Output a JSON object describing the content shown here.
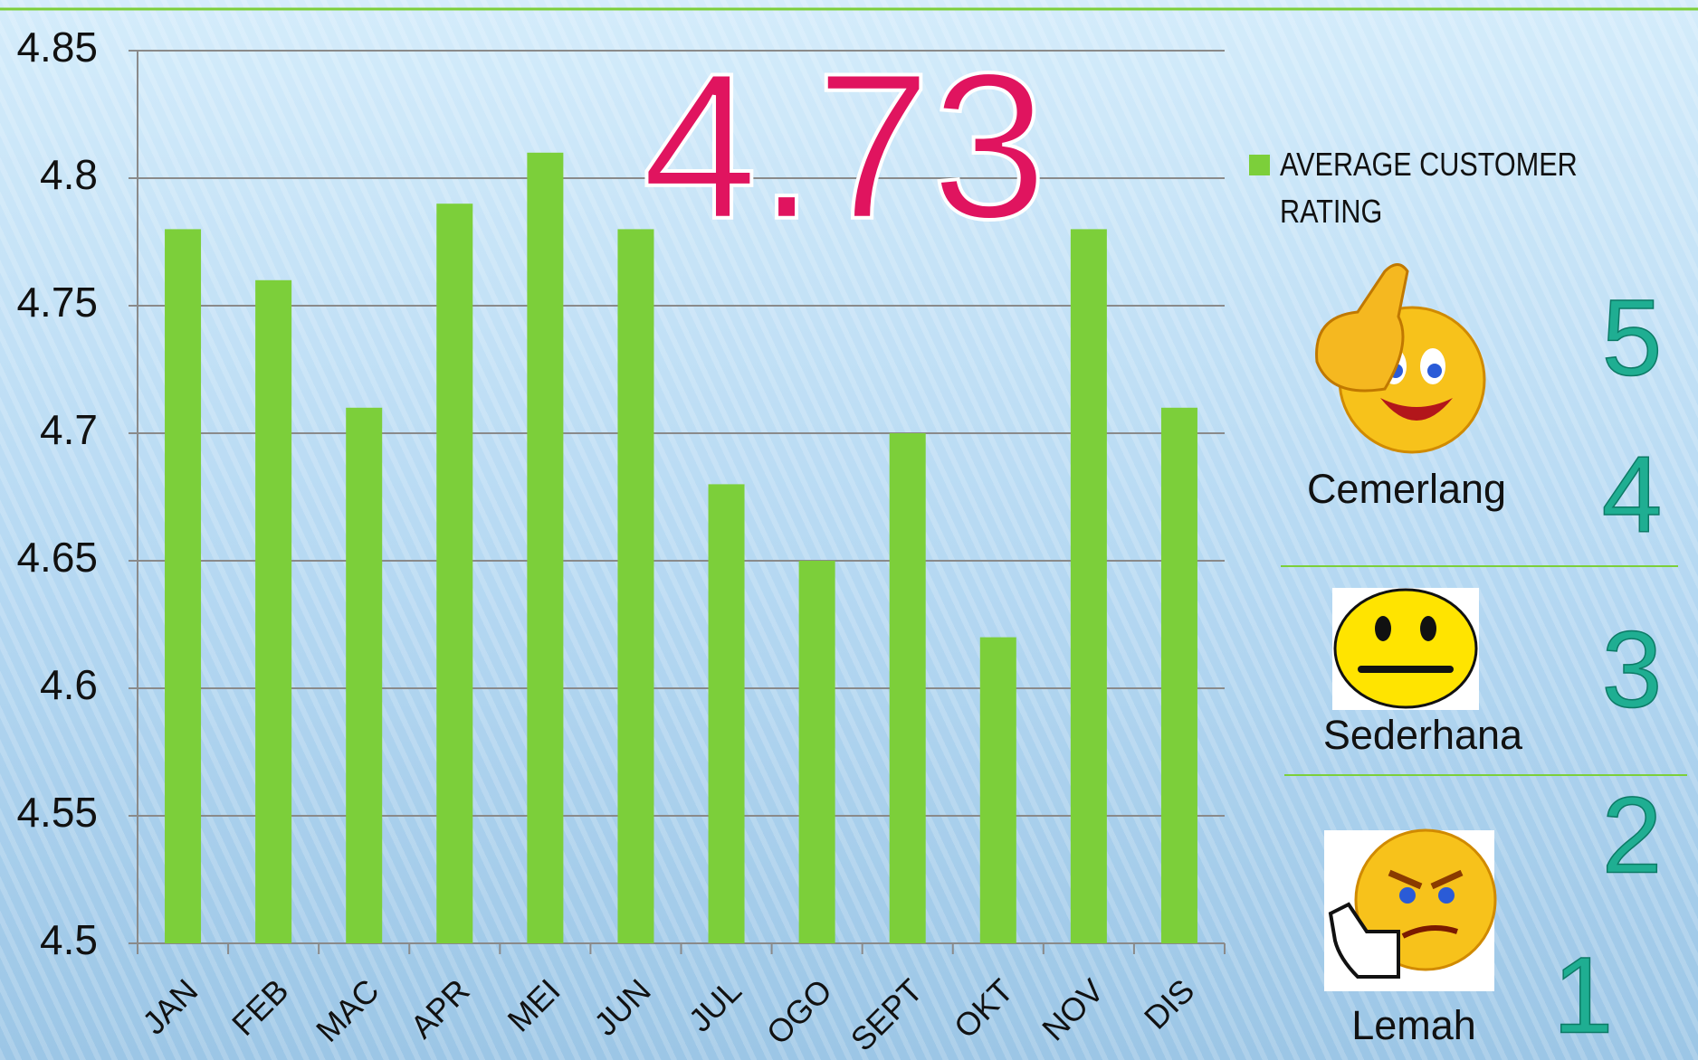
{
  "chart_data": {
    "type": "bar",
    "annotation": "4.73",
    "categories": [
      "JAN",
      "FEB",
      "MAC",
      "APR",
      "MEI",
      "JUN",
      "JUL",
      "OGO",
      "SEPT",
      "OKT",
      "NOV",
      "DIS"
    ],
    "series": [
      {
        "name": "AVERAGE CUSTOMER RATING",
        "color": "#7ccf3a",
        "values": [
          4.78,
          4.76,
          4.71,
          4.79,
          4.81,
          4.78,
          4.68,
          4.65,
          4.7,
          4.62,
          4.78,
          4.71
        ]
      }
    ],
    "ylim": [
      4.5,
      4.85
    ],
    "yticks": [
      4.5,
      4.55,
      4.6,
      4.65,
      4.7,
      4.75,
      4.8,
      4.85
    ],
    "grid": true
  },
  "rating_scale": {
    "labels": [
      "Cemerlang",
      "Sederhana",
      "Lemah"
    ],
    "levels": [
      "5",
      "4",
      "3",
      "2",
      "1"
    ]
  }
}
